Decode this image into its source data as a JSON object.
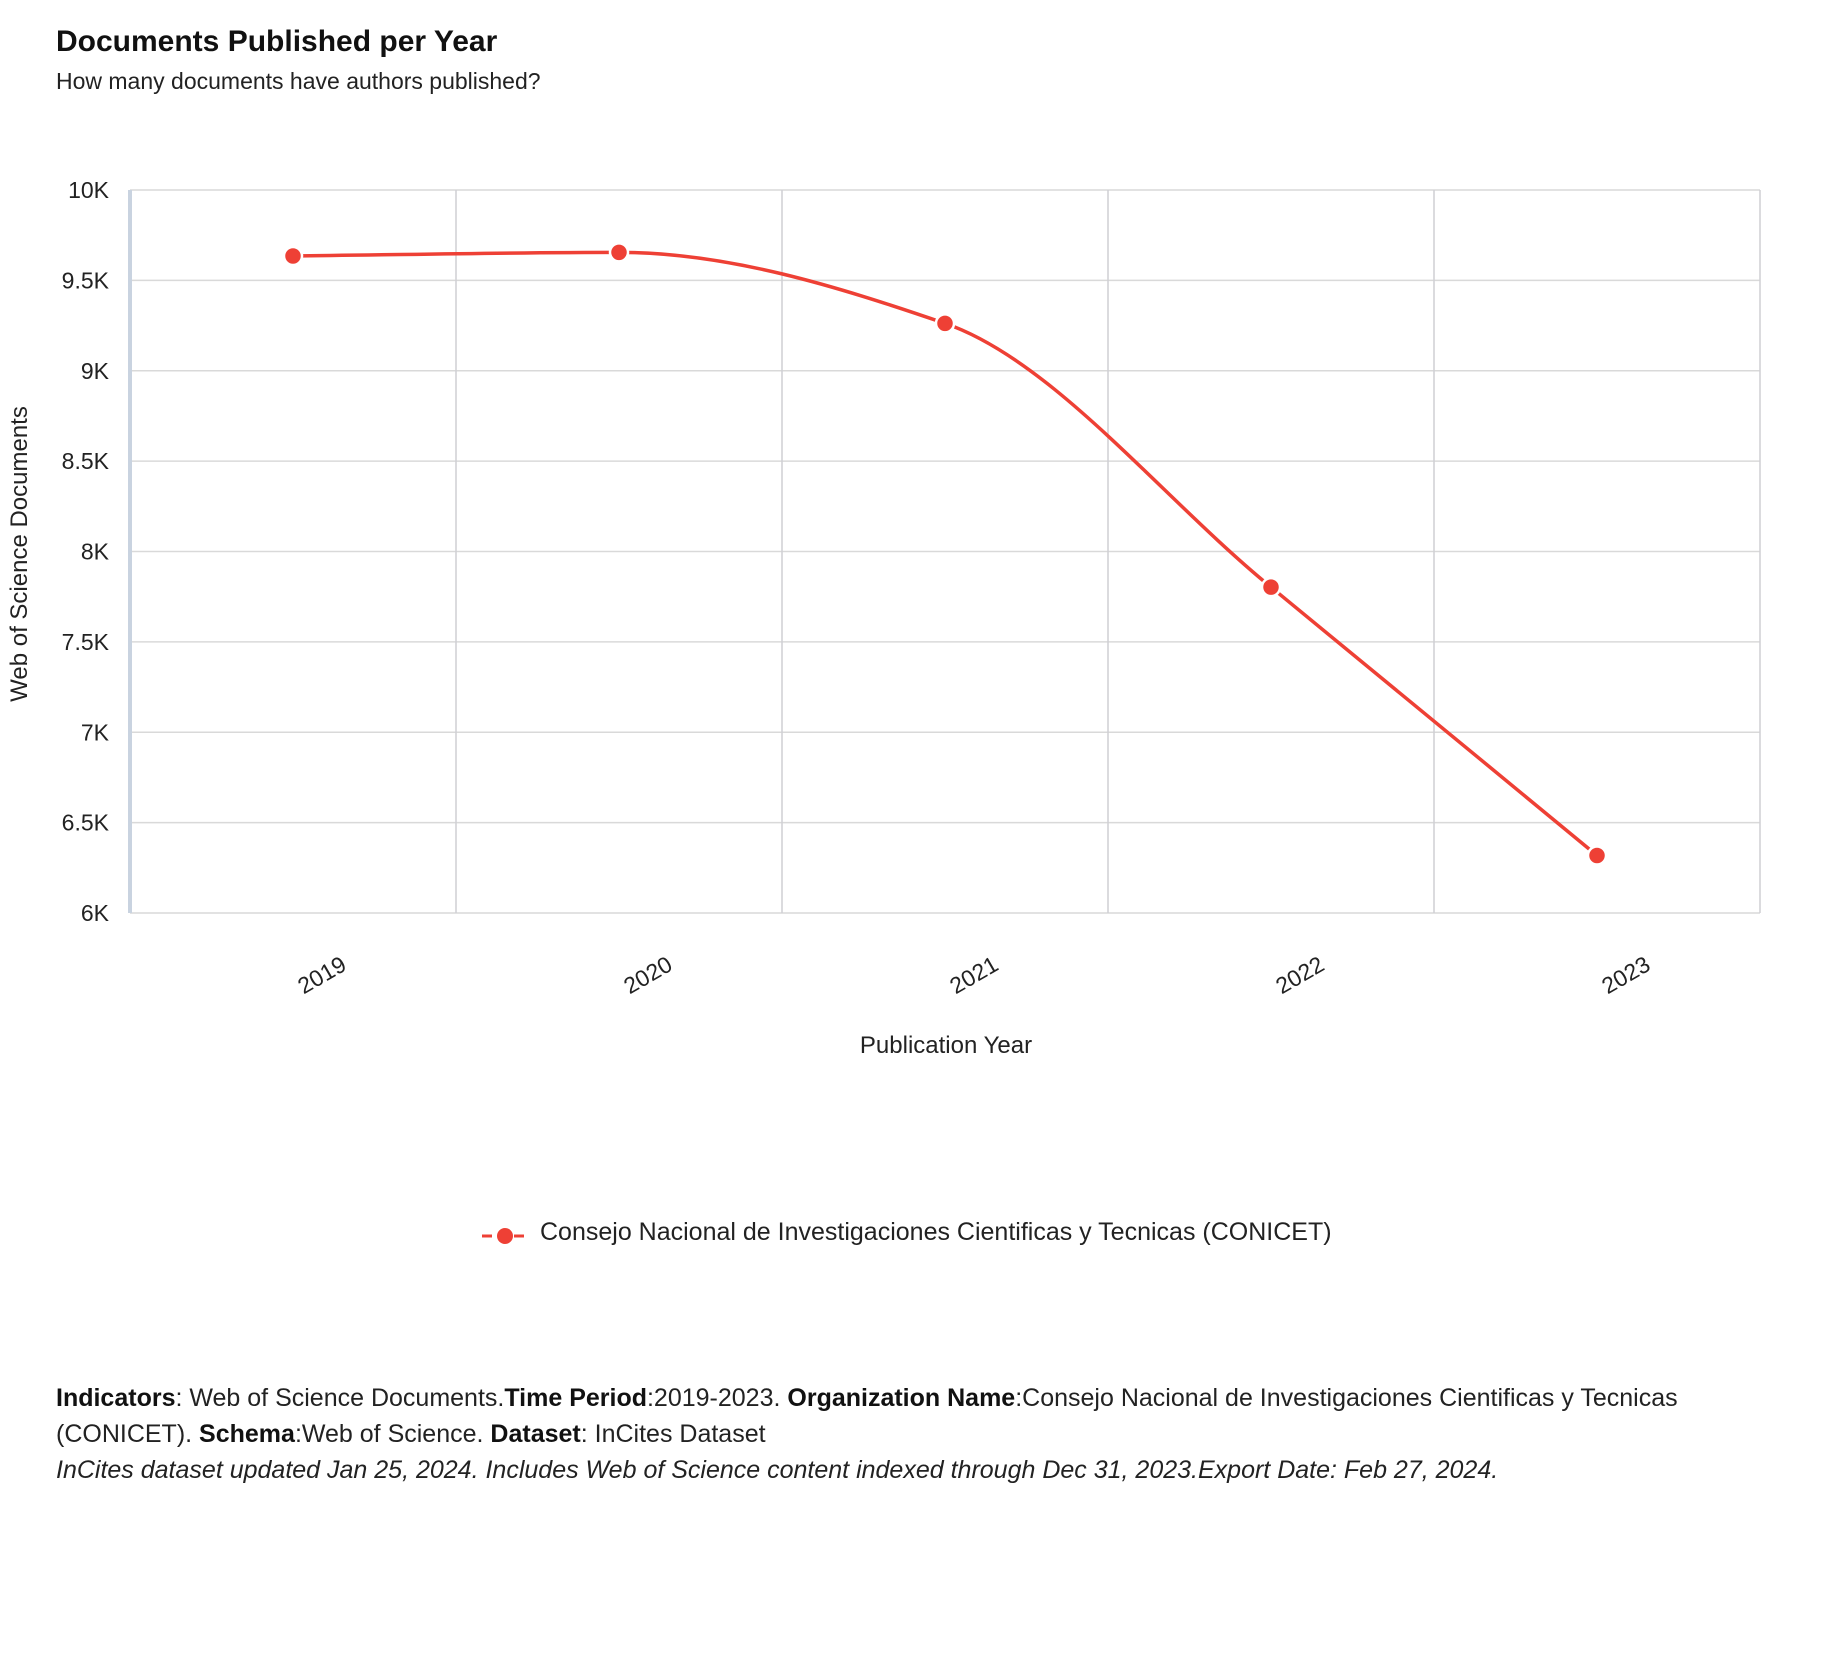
{
  "chart_data": {
    "type": "line",
    "title": "Documents Published per Year",
    "subtitle": "How many documents have authors published?",
    "xlabel": "Publication Year",
    "ylabel": "Web of Science Documents",
    "categories": [
      "2019",
      "2020",
      "2021",
      "2022",
      "2023"
    ],
    "ylim": [
      6000,
      10000
    ],
    "yticks": [
      6000,
      6500,
      7000,
      7500,
      8000,
      8500,
      9000,
      9500,
      10000
    ],
    "ytick_labels": [
      "6K",
      "6.5K",
      "7K",
      "7.5K",
      "8K",
      "8.5K",
      "9K",
      "9.5K",
      "10K"
    ],
    "grid": true,
    "legend_position": "bottom-center",
    "series": [
      {
        "name": "Consejo Nacional de Investigaciones Cientificas y Tecnicas (CONICET)",
        "color": "#ee4035",
        "values": [
          9635,
          9655,
          9262,
          7803,
          6318
        ]
      }
    ]
  },
  "footer": {
    "k1": "Indicators",
    "v1": ": Web of Science Documents.",
    "k2": "Time Period",
    "v2": ":2019-2023. ",
    "k3": "Organization Name",
    "v3": ":Consejo Nacional de Investigaciones Cientificas y Tecnicas (CONICET). ",
    "k4": "Schema",
    "v4": ":Web of Science. ",
    "k5": "Dataset",
    "v5": ": InCites Dataset",
    "note": "InCites dataset updated Jan 25, 2024. Includes Web of Science content indexed through Dec 31, 2023.Export Date: Feb 27, 2024."
  }
}
